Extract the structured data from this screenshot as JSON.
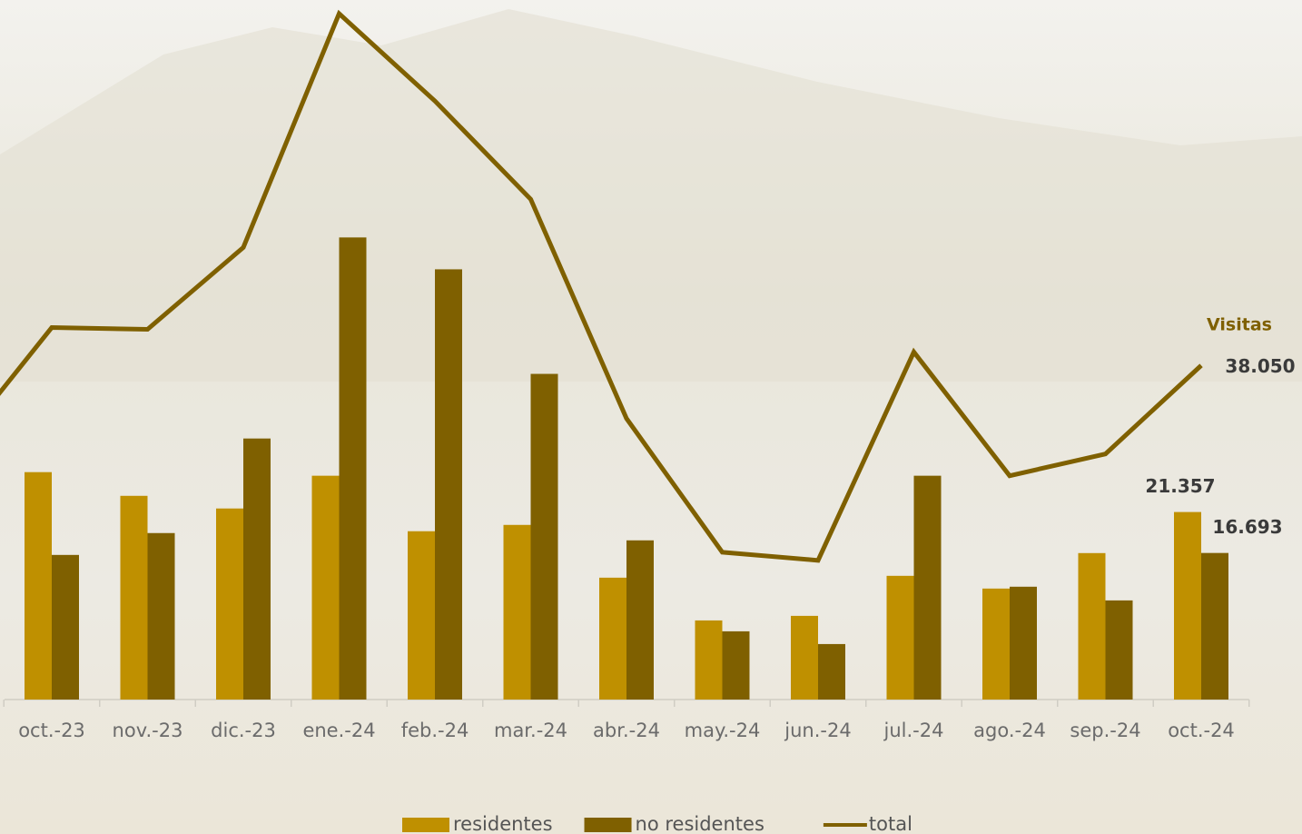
{
  "chart_data": {
    "type": "bar-line",
    "annotation": "Visitas",
    "categories": [
      null,
      "oct.-23",
      "nov.-23",
      "dic.-23",
      "ene.-24",
      "feb.-24",
      "mar.-24",
      "abr.-24",
      "may.-24",
      "jun.-24",
      "jul.-24",
      "ago.-24",
      "sep.-24",
      "oct.-24"
    ],
    "series": [
      {
        "name": "residentes",
        "type": "bar",
        "color": "#bf9000",
        "values": [
          null,
          25900,
          23200,
          21760,
          25490,
          19170,
          19890,
          13880,
          9010,
          9530,
          14090,
          12640,
          16680,
          21357
        ],
        "value_labels": [
          null,
          null,
          null,
          null,
          null,
          null,
          null,
          null,
          null,
          null,
          null,
          null,
          null,
          "21.357"
        ]
      },
      {
        "name": "no residentes",
        "type": "bar",
        "color": "#7f6000",
        "values": [
          null,
          16470,
          18960,
          29730,
          52630,
          49000,
          37090,
          18130,
          7770,
          6320,
          25490,
          12850,
          11290,
          16693
        ],
        "value_labels": [
          null,
          null,
          null,
          null,
          null,
          null,
          null,
          null,
          null,
          null,
          null,
          null,
          null,
          "16.693"
        ]
      },
      {
        "name": "total",
        "type": "line",
        "color": "#7f6000",
        "values": [
          28700,
          42370,
          42160,
          51490,
          78120,
          68170,
          56980,
          32010,
          16780,
          15850,
          39580,
          25490,
          27970,
          38050
        ],
        "value_labels": [
          null,
          null,
          null,
          null,
          null,
          null,
          null,
          null,
          null,
          null,
          null,
          null,
          null,
          "38.050"
        ]
      }
    ],
    "legend": "bottom"
  }
}
